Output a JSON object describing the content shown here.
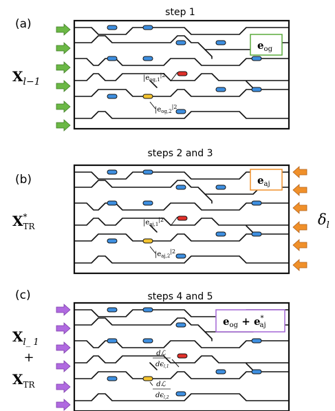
{
  "panels": [
    {
      "id": "a",
      "label": "(a)",
      "step_title": "step 1",
      "box_label": "e",
      "box_label_sub": "og",
      "box_color": "#5aaa3c",
      "arrow_color": "#6bb845",
      "arrow_side": "left",
      "side_text": "X",
      "side_text_sub": "l−1",
      "ann1": "|e",
      "ann1_sub": "og,1",
      "ann1_sup": "|2",
      "ann2": "|e",
      "ann2_sub": "og,2",
      "ann2_sup": "|2"
    },
    {
      "id": "b",
      "label": "(b)",
      "step_title": "steps 2 and 3",
      "box_label": "e",
      "box_label_sub": "aj",
      "box_color": "#f0902a",
      "arrow_color": "#f0902a",
      "arrow_side": "right",
      "side_text": "X",
      "side_text_sub": "TR",
      "side_text_sup": "*",
      "right_text": "δ",
      "right_text_sub": "l",
      "ann1": "|e",
      "ann1_sub": "aj,1",
      "ann1_sup": "|2",
      "ann2": "|e",
      "ann2_sub": "aj,2",
      "ann2_sup": "|2"
    },
    {
      "id": "c",
      "label": "(c)",
      "step_title": "steps 4 and 5",
      "box_label": "e",
      "box_label_sub": "og",
      "box_label2": " + e",
      "box_label2_sub": "aj",
      "box_label2_sup": "*",
      "box_color": "#a466d6",
      "arrow_color": "#b06ae0",
      "arrow_side": "left",
      "side_text": "X",
      "side_text_sub": "l_ 1",
      "side_plus": "+",
      "side_text2": "X",
      "side_text2_sub": "TR",
      "ann1_num": "dℒ",
      "ann1_den": "dϵ",
      "ann1_den_sub": "l,1",
      "ann2_num": "dℒ",
      "ann2_den": "dϵ",
      "ann2_den_sub": "l,2"
    }
  ],
  "colors": {
    "phase_shifter_blue": "#3e8fe0",
    "phase_shifter_red": "#e0302a",
    "phase_shifter_yellow": "#f4c430",
    "waveguide": "#111111"
  }
}
